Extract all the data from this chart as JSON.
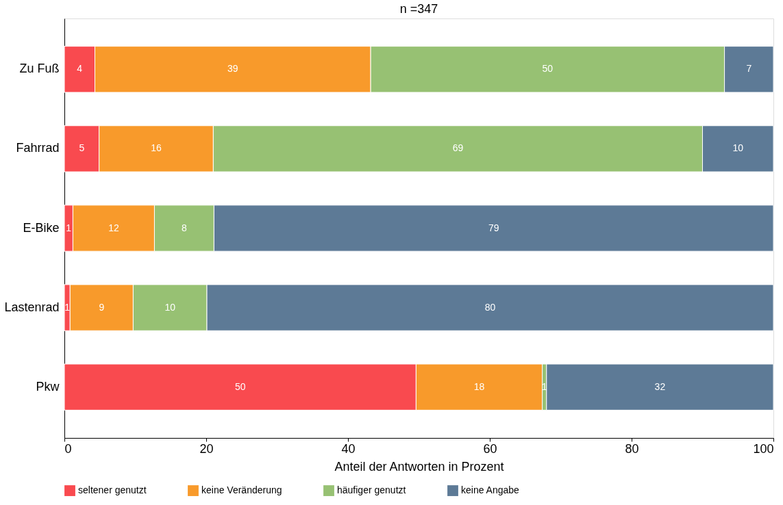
{
  "chart_data": {
    "type": "bar",
    "orientation": "horizontal",
    "stacked": true,
    "title": "n =347",
    "xlabel": "Anteil der Antworten in Prozent",
    "categories": [
      "Zu Fuß",
      "Fahrrad",
      "E-Bike",
      "Lastenrad",
      "Pkw"
    ],
    "series": [
      {
        "name": "seltener genutzt",
        "color": "#f94a4f",
        "values": [
          4.3,
          4.9,
          1.2,
          0.8,
          49.6
        ],
        "value_labels": [
          "4",
          "5",
          "1",
          "1",
          "50"
        ]
      },
      {
        "name": "keine Veränderung",
        "color": "#f89a2b",
        "values": [
          38.9,
          16.1,
          11.5,
          8.9,
          17.8
        ],
        "value_labels": [
          "39",
          "16",
          "12",
          "9",
          "18"
        ]
      },
      {
        "name": "häufiger genutzt",
        "color": "#97c173",
        "values": [
          49.9,
          69.0,
          8.4,
          10.4,
          0.6
        ],
        "value_labels": [
          "50",
          "69",
          "8",
          "10",
          "1"
        ]
      },
      {
        "name": "keine Angabe",
        "color": "#5d7a96",
        "values": [
          6.9,
          10.0,
          78.9,
          79.9,
          32.0
        ],
        "value_labels": [
          "7",
          "10",
          "79",
          "80",
          "32"
        ]
      }
    ],
    "xlim": [
      0,
      100
    ],
    "xticks": [
      0,
      20,
      40,
      60,
      80,
      100
    ],
    "grid": false,
    "legend": "bottom"
  }
}
